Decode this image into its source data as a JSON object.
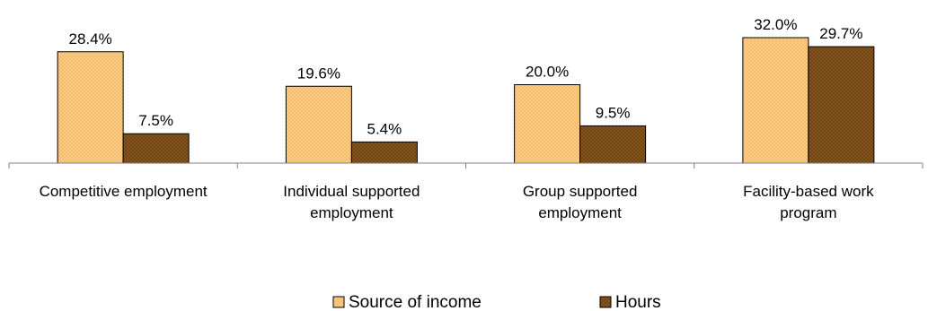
{
  "chart_data": {
    "type": "bar",
    "categories": [
      [
        "Competitive employment"
      ],
      [
        "Individual supported",
        "employment"
      ],
      [
        "Group supported",
        "employment"
      ],
      [
        "Facility-based work",
        "program"
      ]
    ],
    "series": [
      {
        "name": "Source of income",
        "values": [
          28.4,
          19.6,
          20.0,
          32.0
        ],
        "color": "#fdd08a",
        "pattern": "light-crosshatch"
      },
      {
        "name": "Hours",
        "values": [
          7.5,
          5.4,
          9.5,
          29.7
        ],
        "color": "#8b5a20",
        "pattern": "dark-crosshatch"
      }
    ],
    "value_labels": [
      [
        "28.4%",
        "19.6%",
        "20.0%",
        "32.0%"
      ],
      [
        "7.5%",
        "5.4%",
        "9.5%",
        "29.7%"
      ]
    ],
    "ylim": [
      0,
      35
    ],
    "grid": false,
    "legend_position": "bottom"
  }
}
